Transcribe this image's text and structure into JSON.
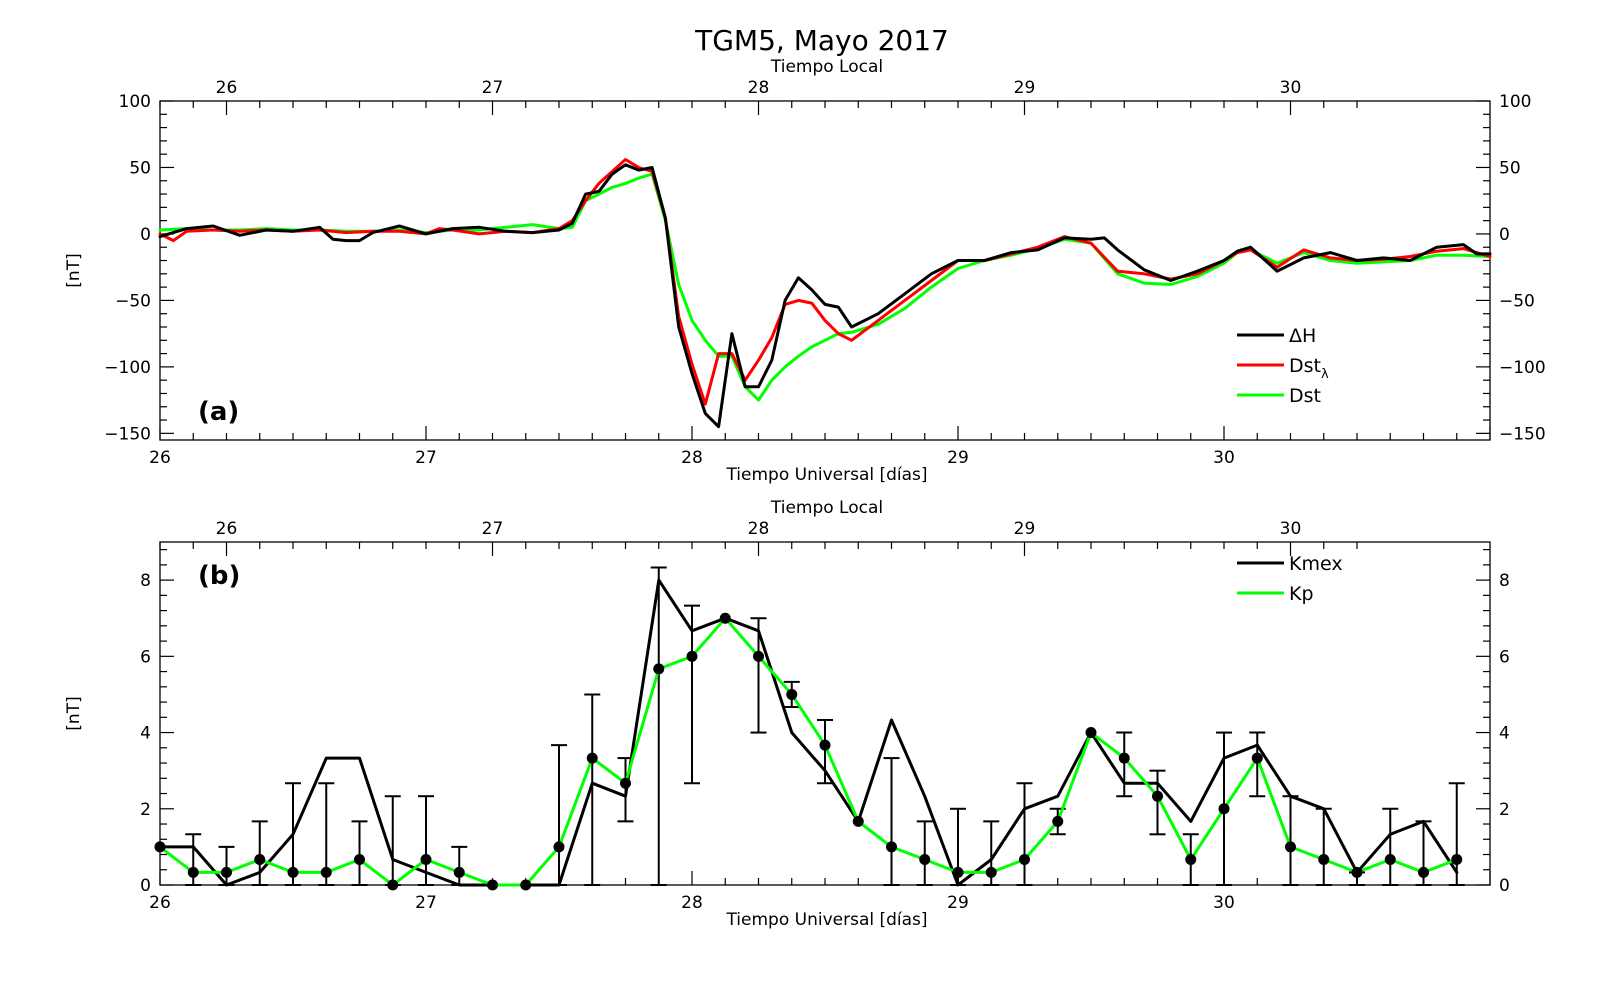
{
  "title": "TGM5, Mayo 2017",
  "chart_data": [
    {
      "type": "line",
      "panel_label": "(a)",
      "xlabel": "Tiempo Universal [días]",
      "x2label": "Tiempo Local",
      "ylabel": "[nT]",
      "xlim": [
        26,
        31
      ],
      "ylim": [
        -155,
        100
      ],
      "xticks": [
        26,
        27,
        28,
        29,
        30
      ],
      "x2ticks": [
        26,
        27,
        28,
        29,
        30
      ],
      "x2_offset_days": -0.25,
      "yticks": [
        -150,
        -100,
        -50,
        0,
        50,
        100
      ],
      "grid": false,
      "legend_position": "lower-right",
      "legend": [
        {
          "label": "ΔH",
          "color": "#000000"
        },
        {
          "label": "Dst",
          "sub": "λ",
          "color": "#ff0000"
        },
        {
          "label": "Dst",
          "color": "#00ff00"
        }
      ],
      "series": [
        {
          "name": "ΔH",
          "color": "#000000",
          "x": [
            26.0,
            26.1,
            26.2,
            26.3,
            26.4,
            26.5,
            26.6,
            26.65,
            26.7,
            26.75,
            26.8,
            26.9,
            27.0,
            27.1,
            27.2,
            27.3,
            27.4,
            27.5,
            27.55,
            27.6,
            27.65,
            27.7,
            27.75,
            27.8,
            27.85,
            27.9,
            27.95,
            28.0,
            28.05,
            28.1,
            28.15,
            28.2,
            28.25,
            28.3,
            28.35,
            28.4,
            28.45,
            28.5,
            28.55,
            28.6,
            28.7,
            28.8,
            28.9,
            29.0,
            29.1,
            29.2,
            29.3,
            29.4,
            29.5,
            29.55,
            29.6,
            29.7,
            29.8,
            29.9,
            30.0,
            30.05,
            30.1,
            30.2,
            30.3,
            30.4,
            30.5,
            30.6,
            30.7,
            30.8,
            30.9,
            30.95,
            31.0
          ],
          "y": [
            -2,
            4,
            6,
            -1,
            3,
            2,
            5,
            -4,
            -5,
            -5,
            1,
            6,
            0,
            4,
            5,
            2,
            1,
            3,
            8,
            30,
            32,
            45,
            52,
            48,
            50,
            12,
            -70,
            -105,
            -135,
            -145,
            -75,
            -115,
            -115,
            -95,
            -50,
            -33,
            -42,
            -53,
            -55,
            -70,
            -60,
            -45,
            -30,
            -20,
            -20,
            -14,
            -12,
            -3,
            -4,
            -3,
            -12,
            -27,
            -35,
            -28,
            -20,
            -13,
            -10,
            -28,
            -18,
            -14,
            -20,
            -18,
            -20,
            -10,
            -8,
            -15,
            -15
          ]
        },
        {
          "name": "Dst_λ",
          "color": "#ff0000",
          "x": [
            26.0,
            26.05,
            26.1,
            26.2,
            26.3,
            26.4,
            26.5,
            26.6,
            26.7,
            26.8,
            26.9,
            27.0,
            27.05,
            27.1,
            27.2,
            27.3,
            27.4,
            27.5,
            27.55,
            27.6,
            27.65,
            27.7,
            27.75,
            27.8,
            27.85,
            27.9,
            27.95,
            28.0,
            28.05,
            28.1,
            28.15,
            28.2,
            28.25,
            28.3,
            28.35,
            28.4,
            28.45,
            28.5,
            28.55,
            28.6,
            28.7,
            28.8,
            28.9,
            29.0,
            29.1,
            29.2,
            29.3,
            29.4,
            29.5,
            29.6,
            29.7,
            29.8,
            29.9,
            30.0,
            30.05,
            30.1,
            30.2,
            30.3,
            30.4,
            30.5,
            30.6,
            30.7,
            30.8,
            30.9,
            31.0
          ],
          "y": [
            0,
            -5,
            2,
            3,
            2,
            3,
            2,
            3,
            1,
            2,
            2,
            0,
            4,
            3,
            0,
            2,
            1,
            4,
            10,
            25,
            38,
            47,
            56,
            50,
            47,
            12,
            -62,
            -98,
            -128,
            -90,
            -90,
            -110,
            -95,
            -78,
            -53,
            -50,
            -52,
            -65,
            -75,
            -80,
            -65,
            -50,
            -35,
            -20,
            -20,
            -15,
            -10,
            -2,
            -7,
            -28,
            -30,
            -34,
            -30,
            -20,
            -14,
            -12,
            -25,
            -12,
            -18,
            -20,
            -19,
            -17,
            -13,
            -11,
            -17
          ]
        },
        {
          "name": "Dst",
          "color": "#00ff00",
          "x": [
            26.0,
            26.1,
            26.2,
            26.3,
            26.4,
            26.5,
            26.6,
            26.7,
            26.8,
            26.9,
            27.0,
            27.1,
            27.2,
            27.3,
            27.4,
            27.5,
            27.55,
            27.6,
            27.65,
            27.7,
            27.75,
            27.8,
            27.85,
            27.9,
            27.95,
            28.0,
            28.05,
            28.1,
            28.15,
            28.2,
            28.25,
            28.3,
            28.35,
            28.4,
            28.45,
            28.5,
            28.55,
            28.6,
            28.7,
            28.8,
            28.9,
            29.0,
            29.1,
            29.2,
            29.3,
            29.4,
            29.5,
            29.6,
            29.7,
            29.8,
            29.9,
            30.0,
            30.05,
            30.1,
            30.2,
            30.3,
            30.4,
            30.5,
            30.6,
            30.7,
            30.8,
            30.9,
            31.0
          ],
          "y": [
            3,
            4,
            3,
            3,
            4,
            3,
            3,
            2,
            2,
            3,
            1,
            3,
            3,
            5,
            7,
            4,
            5,
            25,
            30,
            35,
            38,
            42,
            45,
            10,
            -38,
            -65,
            -80,
            -92,
            -92,
            -115,
            -125,
            -110,
            -100,
            -92,
            -85,
            -80,
            -75,
            -74,
            -68,
            -56,
            -40,
            -26,
            -20,
            -16,
            -11,
            -4,
            -7,
            -30,
            -37,
            -38,
            -32,
            -22,
            -14,
            -12,
            -22,
            -14,
            -20,
            -22,
            -21,
            -20,
            -16,
            -16,
            -17
          ]
        }
      ]
    },
    {
      "type": "line",
      "panel_label": "(b)",
      "xlabel": "Tiempo Universal [días]",
      "x2label": "Tiempo Local",
      "ylabel": "[nT]",
      "xlim": [
        26,
        31
      ],
      "ylim": [
        0,
        9
      ],
      "xticks": [
        26,
        27,
        28,
        29,
        30
      ],
      "x2ticks": [
        26,
        27,
        28,
        29,
        30
      ],
      "x2_offset_days": -0.25,
      "yticks": [
        0,
        2,
        4,
        6,
        8
      ],
      "grid": false,
      "legend_position": "top-right",
      "legend": [
        {
          "label": "Kmex",
          "color": "#000000"
        },
        {
          "label": "Kp",
          "color": "#00ff00"
        }
      ],
      "series": [
        {
          "name": "Kmex",
          "color": "#000000",
          "x": [
            26.0,
            26.125,
            26.25,
            26.375,
            26.5,
            26.625,
            26.75,
            26.875,
            27.0,
            27.125,
            27.25,
            27.375,
            27.5,
            27.625,
            27.75,
            27.875,
            28.0,
            28.125,
            28.25,
            28.375,
            28.5,
            28.625,
            28.75,
            28.875,
            29.0,
            29.125,
            29.25,
            29.375,
            29.5,
            29.625,
            29.75,
            29.875,
            30.0,
            30.125,
            30.25,
            30.375,
            30.5,
            30.625,
            30.75,
            30.875
          ],
          "y": [
            1,
            1,
            0,
            0.33,
            1.33,
            3.33,
            3.33,
            0.67,
            0.33,
            0,
            0,
            0,
            0,
            2.67,
            2.33,
            8,
            6.67,
            7,
            6.67,
            4,
            3,
            1.67,
            4.33,
            2.33,
            0,
            0.67,
            2,
            2.33,
            4,
            2.67,
            2.67,
            1.67,
            3.33,
            3.67,
            2.33,
            2,
            0.33,
            1.33,
            1.67,
            0.33
          ]
        },
        {
          "name": "Kp",
          "color": "#00ff00",
          "x": [
            26.0,
            26.125,
            26.25,
            26.375,
            26.5,
            26.625,
            26.75,
            26.875,
            27.0,
            27.125,
            27.25,
            27.375,
            27.5,
            27.625,
            27.75,
            27.875,
            28.0,
            28.125,
            28.25,
            28.375,
            28.5,
            28.625,
            28.75,
            28.875,
            29.0,
            29.125,
            29.25,
            29.375,
            29.5,
            29.625,
            29.75,
            29.875,
            30.0,
            30.125,
            30.25,
            30.375,
            30.5,
            30.625,
            30.75,
            30.875
          ],
          "y": [
            1,
            0.33,
            0.33,
            0.67,
            0.33,
            0.33,
            0.67,
            0,
            0.67,
            0.33,
            0,
            0,
            1,
            3.33,
            2.67,
            5.67,
            6,
            7,
            6,
            5,
            3.67,
            1.67,
            1,
            0.67,
            0.33,
            0.33,
            0.67,
            1.67,
            4,
            3.33,
            2.33,
            0.67,
            2,
            3.33,
            1,
            0.67,
            0.33,
            0.67,
            0.33,
            0.67
          ]
        }
      ],
      "error_bars": {
        "x": [
          26.0,
          26.125,
          26.25,
          26.375,
          26.5,
          26.625,
          26.75,
          26.875,
          27.0,
          27.125,
          27.25,
          27.375,
          27.5,
          27.625,
          27.75,
          27.875,
          28.0,
          28.125,
          28.25,
          28.375,
          28.5,
          28.625,
          28.75,
          28.875,
          29.0,
          29.125,
          29.25,
          29.375,
          29.5,
          29.625,
          29.75,
          29.875,
          30.0,
          30.125,
          30.25,
          30.375,
          30.5,
          30.625,
          30.75,
          30.875
        ],
        "low": [
          1,
          0,
          0,
          0,
          0,
          0,
          0,
          0,
          0,
          0,
          0,
          0,
          0,
          0,
          1.67,
          0,
          2.67,
          7,
          4,
          4.67,
          2.67,
          1.67,
          0,
          0,
          0,
          0,
          0,
          1.33,
          4,
          2.33,
          1.33,
          0,
          0,
          2.33,
          0,
          0,
          0,
          0,
          0,
          0
        ],
        "high": [
          1,
          1.33,
          1,
          1.67,
          2.67,
          2.67,
          1.67,
          2.33,
          2.33,
          1,
          0,
          0,
          3.67,
          5,
          3.33,
          8.33,
          7.33,
          7,
          7,
          5.33,
          4.33,
          1.67,
          3.33,
          1.67,
          2,
          1.67,
          2.67,
          2,
          4,
          4,
          3,
          1.33,
          4,
          4,
          2.33,
          2,
          0.33,
          2,
          1.67,
          2.67
        ]
      }
    }
  ]
}
